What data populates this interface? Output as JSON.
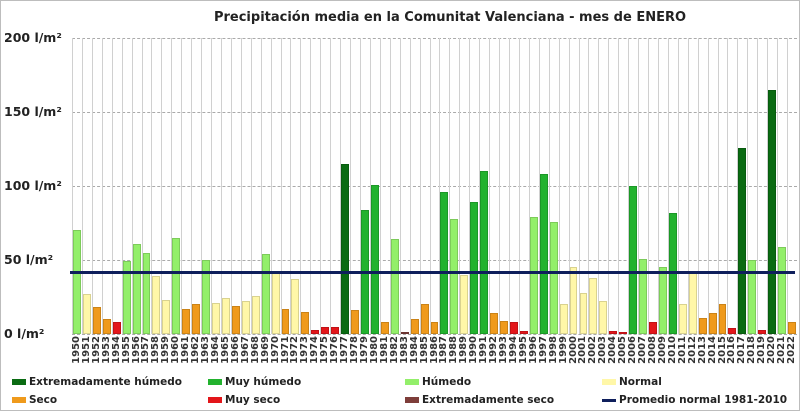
{
  "chart_data": {
    "type": "bar",
    "title": "Precipitación media en la Comunitat Valenciana - mes de ENERO",
    "xlabel": "",
    "ylabel": "l/m²",
    "ylim": [
      0,
      200
    ],
    "yticks": [
      "0 l/m²",
      "50 l/m²",
      "100 l/m²",
      "150 l/m²",
      "200 l/m²"
    ],
    "grid": true,
    "legend_position": "bottom",
    "normal_line": {
      "label": "Promedio normal 1981-2010",
      "value": 42,
      "color": "#0f1f5c"
    },
    "categories_colors": {
      "Extremadamente húmedo": "#0a6b12",
      "Muy húmedo": "#22b22e",
      "Húmedo": "#93ef6a",
      "Normal": "#fff7a8",
      "Seco": "#ef9a1c",
      "Muy seco": "#e3161a",
      "Extremadamente seco": "#7e3e3a"
    },
    "bars": [
      {
        "year": "1950",
        "value": 70,
        "cat": "Húmedo"
      },
      {
        "year": "1951",
        "value": 27,
        "cat": "Normal"
      },
      {
        "year": "1952",
        "value": 18,
        "cat": "Seco"
      },
      {
        "year": "1953",
        "value": 10,
        "cat": "Seco"
      },
      {
        "year": "1954",
        "value": 8,
        "cat": "Muy seco"
      },
      {
        "year": "1955",
        "value": 49,
        "cat": "Húmedo"
      },
      {
        "year": "1956",
        "value": 61,
        "cat": "Húmedo"
      },
      {
        "year": "1957",
        "value": 55,
        "cat": "Húmedo"
      },
      {
        "year": "1958",
        "value": 39,
        "cat": "Normal"
      },
      {
        "year": "1959",
        "value": 23,
        "cat": "Normal"
      },
      {
        "year": "1960",
        "value": 65,
        "cat": "Húmedo"
      },
      {
        "year": "1961",
        "value": 17,
        "cat": "Seco"
      },
      {
        "year": "1962",
        "value": 20,
        "cat": "Seco"
      },
      {
        "year": "1963",
        "value": 50,
        "cat": "Húmedo"
      },
      {
        "year": "1964",
        "value": 21,
        "cat": "Normal"
      },
      {
        "year": "1965",
        "value": 24,
        "cat": "Normal"
      },
      {
        "year": "1966",
        "value": 19,
        "cat": "Seco"
      },
      {
        "year": "1967",
        "value": 22,
        "cat": "Normal"
      },
      {
        "year": "1968",
        "value": 26,
        "cat": "Normal"
      },
      {
        "year": "1969",
        "value": 54,
        "cat": "Húmedo"
      },
      {
        "year": "1970",
        "value": 41,
        "cat": "Normal"
      },
      {
        "year": "1971",
        "value": 17,
        "cat": "Seco"
      },
      {
        "year": "1972",
        "value": 37,
        "cat": "Normal"
      },
      {
        "year": "1973",
        "value": 15,
        "cat": "Seco"
      },
      {
        "year": "1974",
        "value": 3,
        "cat": "Muy seco"
      },
      {
        "year": "1975",
        "value": 5,
        "cat": "Muy seco"
      },
      {
        "year": "1976",
        "value": 5,
        "cat": "Muy seco"
      },
      {
        "year": "1977",
        "value": 115,
        "cat": "Extremadamente húmedo"
      },
      {
        "year": "1978",
        "value": 16,
        "cat": "Seco"
      },
      {
        "year": "1979",
        "value": 84,
        "cat": "Muy húmedo"
      },
      {
        "year": "1980",
        "value": 101,
        "cat": "Muy húmedo"
      },
      {
        "year": "1981",
        "value": 8,
        "cat": "Seco"
      },
      {
        "year": "1982",
        "value": 64,
        "cat": "Húmedo"
      },
      {
        "year": "1983",
        "value": 0.5,
        "cat": "Extremadamente seco"
      },
      {
        "year": "1984",
        "value": 10,
        "cat": "Seco"
      },
      {
        "year": "1985",
        "value": 20,
        "cat": "Seco"
      },
      {
        "year": "1986",
        "value": 8,
        "cat": "Seco"
      },
      {
        "year": "1987",
        "value": 96,
        "cat": "Muy húmedo"
      },
      {
        "year": "1988",
        "value": 78,
        "cat": "Húmedo"
      },
      {
        "year": "1989",
        "value": 40,
        "cat": "Normal"
      },
      {
        "year": "1990",
        "value": 89,
        "cat": "Muy húmedo"
      },
      {
        "year": "1991",
        "value": 110,
        "cat": "Muy húmedo"
      },
      {
        "year": "1992",
        "value": 14,
        "cat": "Seco"
      },
      {
        "year": "1993",
        "value": 9,
        "cat": "Seco"
      },
      {
        "year": "1994",
        "value": 8,
        "cat": "Muy seco"
      },
      {
        "year": "1995",
        "value": 2,
        "cat": "Muy seco"
      },
      {
        "year": "1996",
        "value": 79,
        "cat": "Húmedo"
      },
      {
        "year": "1997",
        "value": 108,
        "cat": "Muy húmedo"
      },
      {
        "year": "1998",
        "value": 76,
        "cat": "Húmedo"
      },
      {
        "year": "1999",
        "value": 20,
        "cat": "Normal"
      },
      {
        "year": "2000",
        "value": 45,
        "cat": "Normal"
      },
      {
        "year": "2001",
        "value": 28,
        "cat": "Normal"
      },
      {
        "year": "2002",
        "value": 38,
        "cat": "Normal"
      },
      {
        "year": "2003",
        "value": 22,
        "cat": "Normal"
      },
      {
        "year": "2004",
        "value": 2,
        "cat": "Muy seco"
      },
      {
        "year": "2005",
        "value": 1,
        "cat": "Muy seco"
      },
      {
        "year": "2006",
        "value": 100,
        "cat": "Muy húmedo"
      },
      {
        "year": "2007",
        "value": 51,
        "cat": "Húmedo"
      },
      {
        "year": "2008",
        "value": 8,
        "cat": "Muy seco"
      },
      {
        "year": "2009",
        "value": 45,
        "cat": "Húmedo"
      },
      {
        "year": "2010",
        "value": 82,
        "cat": "Muy húmedo"
      },
      {
        "year": "2011",
        "value": 20,
        "cat": "Normal"
      },
      {
        "year": "2012",
        "value": 42,
        "cat": "Normal"
      },
      {
        "year": "2013",
        "value": 11,
        "cat": "Seco"
      },
      {
        "year": "2014",
        "value": 14,
        "cat": "Seco"
      },
      {
        "year": "2015",
        "value": 20,
        "cat": "Seco"
      },
      {
        "year": "2016",
        "value": 4,
        "cat": "Muy seco"
      },
      {
        "year": "2017",
        "value": 126,
        "cat": "Extremadamente húmedo"
      },
      {
        "year": "2018",
        "value": 50,
        "cat": "Húmedo"
      },
      {
        "year": "2019",
        "value": 3,
        "cat": "Muy seco"
      },
      {
        "year": "2020",
        "value": 165,
        "cat": "Extremadamente húmedo"
      },
      {
        "year": "2021",
        "value": 59,
        "cat": "Húmedo"
      },
      {
        "year": "2022",
        "value": 8,
        "cat": "Seco"
      }
    ],
    "legend": [
      {
        "label": "Extremadamente húmedo",
        "color": "#0a6b12",
        "kind": "box"
      },
      {
        "label": "Muy húmedo",
        "color": "#22b22e",
        "kind": "box"
      },
      {
        "label": "Húmedo",
        "color": "#93ef6a",
        "kind": "box"
      },
      {
        "label": "Normal",
        "color": "#fff7a8",
        "kind": "box"
      },
      {
        "label": "Seco",
        "color": "#ef9a1c",
        "kind": "box"
      },
      {
        "label": "Muy seco",
        "color": "#e3161a",
        "kind": "box"
      },
      {
        "label": "Extremadamente seco",
        "color": "#7e3e3a",
        "kind": "box"
      },
      {
        "label": "Promedio normal 1981-2010",
        "color": "#0f1f5c",
        "kind": "line"
      }
    ]
  }
}
